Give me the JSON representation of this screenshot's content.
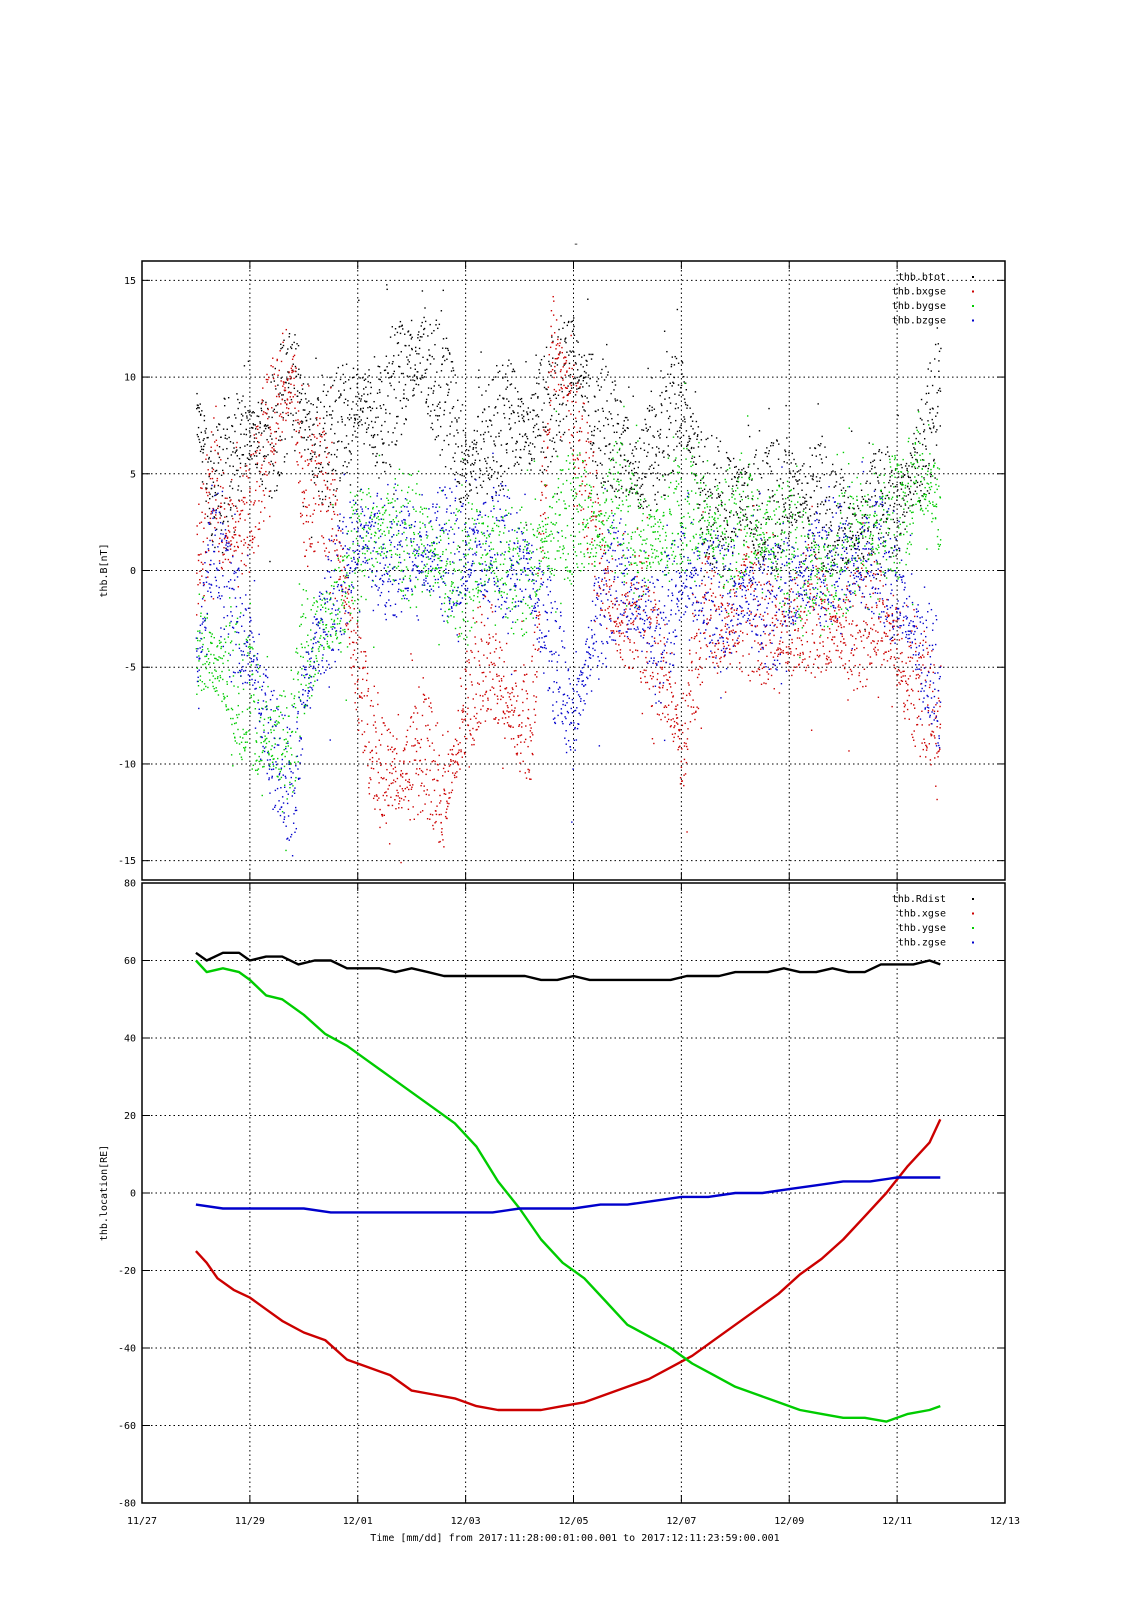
{
  "page": {
    "title_mark": "-"
  },
  "colors": {
    "black": "#000000",
    "red": "#cc0000",
    "green": "#00cc00",
    "blue": "#0000cc",
    "grid": "#000000"
  },
  "x_axis": {
    "label": "Time [mm/dd]  from 2017:11:28:00:01:00.001  to  2017:12:11:23:59:00.001",
    "ticks": [
      {
        "day": 0,
        "label": "11/27"
      },
      {
        "day": 2,
        "label": "11/29"
      },
      {
        "day": 4,
        "label": "12/01"
      },
      {
        "day": 6,
        "label": "12/03"
      },
      {
        "day": 8,
        "label": "12/05"
      },
      {
        "day": 10,
        "label": "12/07"
      },
      {
        "day": 12,
        "label": "12/09"
      },
      {
        "day": 14,
        "label": "12/11"
      },
      {
        "day": 16,
        "label": "12/13"
      }
    ],
    "range": [
      "11/27",
      "12/13"
    ]
  },
  "chart_data": [
    {
      "type": "scatter",
      "ylabel": "thb.B[nT]",
      "ylim": [
        -16,
        16
      ],
      "y_ticks": [
        -15,
        -10,
        -5,
        0,
        5,
        10,
        15
      ],
      "grid": true,
      "legend_position": "top-right",
      "x_unit": "day since 11/27",
      "series": [
        {
          "name": "thb.btot",
          "color": "#000000",
          "x": [
            1.0,
            1.3,
            1.6,
            2.0,
            2.4,
            2.8,
            3.0,
            3.3,
            3.6,
            4.0,
            4.4,
            4.8,
            5.2,
            5.6,
            6.0,
            6.4,
            6.8,
            7.2,
            7.6,
            8.0,
            8.4,
            8.8,
            9.2,
            9.6,
            10.0,
            10.4,
            10.8,
            11.2,
            11.6,
            12.0,
            12.4,
            12.8,
            13.2,
            13.6,
            14.0,
            14.4,
            14.8
          ],
          "y": [
            8,
            4,
            6,
            7,
            7,
            10,
            8,
            6,
            7,
            9,
            8,
            10,
            11,
            9,
            5,
            7,
            8,
            7,
            9,
            11,
            8,
            7,
            5,
            7,
            9,
            4,
            3,
            4,
            3,
            4,
            4,
            3,
            2,
            3,
            3,
            6,
            9
          ]
        },
        {
          "name": "thb.bxgse",
          "color": "#cc0000",
          "x": [
            1.0,
            1.3,
            1.6,
            2.0,
            2.4,
            2.8,
            3.0,
            3.3,
            3.6,
            4.0,
            4.4,
            4.8,
            5.2,
            5.6,
            6.0,
            6.4,
            6.8,
            7.2,
            7.6,
            8.0,
            8.4,
            8.8,
            9.2,
            9.6,
            10.0,
            10.4,
            10.8,
            11.2,
            11.6,
            12.0,
            12.4,
            12.8,
            13.2,
            13.6,
            14.0,
            14.4,
            14.8
          ],
          "y": [
            0,
            4,
            2,
            3,
            8,
            10,
            3,
            5,
            2,
            -6,
            -10,
            -11,
            -9,
            -12,
            -7,
            -4,
            -7,
            -8,
            12,
            8,
            2,
            -3,
            -2,
            -5,
            -9,
            -2,
            -3,
            -2,
            -3,
            -3,
            -2,
            -3,
            -3,
            -2,
            -4,
            -6,
            -8
          ]
        },
        {
          "name": "thb.bygse",
          "color": "#00cc00",
          "x": [
            1.0,
            1.3,
            1.6,
            2.0,
            2.4,
            2.8,
            3.0,
            3.3,
            3.6,
            4.0,
            4.4,
            4.8,
            5.2,
            5.6,
            6.0,
            6.4,
            6.8,
            7.2,
            7.6,
            8.0,
            8.4,
            8.8,
            9.2,
            9.6,
            10.0,
            10.4,
            10.8,
            11.2,
            11.6,
            12.0,
            12.4,
            12.8,
            13.2,
            13.6,
            14.0,
            14.4,
            14.8
          ],
          "y": [
            -3,
            -5,
            -5,
            -7,
            -9,
            -8,
            -4,
            -3,
            -2,
            1,
            2,
            2,
            1,
            0,
            0,
            1,
            0,
            0,
            2,
            3,
            2,
            4,
            1,
            2,
            3,
            3,
            2,
            3,
            2,
            1,
            0,
            0,
            2,
            2,
            3,
            5,
            3
          ]
        },
        {
          "name": "thb.bzgse",
          "color": "#0000cc",
          "x": [
            1.0,
            1.3,
            1.6,
            2.0,
            2.4,
            2.8,
            3.0,
            3.3,
            3.6,
            4.0,
            4.4,
            4.8,
            5.2,
            5.6,
            6.0,
            6.4,
            6.8,
            7.2,
            7.6,
            8.0,
            8.4,
            8.8,
            9.2,
            9.6,
            10.0,
            10.4,
            10.8,
            11.2,
            11.6,
            12.0,
            12.4,
            12.8,
            13.2,
            13.6,
            14.0,
            14.4,
            14.8
          ],
          "y": [
            -5,
            2,
            -2,
            -4,
            -9,
            -12,
            -6,
            -3,
            -1,
            2,
            1,
            1,
            1,
            1,
            1,
            1,
            1,
            0,
            -4,
            -8,
            -3,
            0,
            -2,
            -4,
            0,
            -1,
            -2,
            -1,
            -2,
            -1,
            0,
            1,
            0,
            1,
            -1,
            -4,
            -6
          ]
        }
      ]
    },
    {
      "type": "line",
      "ylabel": "thb.location[RE]",
      "ylim": [
        -80,
        80
      ],
      "y_ticks": [
        -80,
        -60,
        -40,
        -20,
        0,
        20,
        40,
        60,
        80
      ],
      "grid": true,
      "legend_position": "top-right",
      "x_unit": "day since 11/27",
      "series": [
        {
          "name": "thb.Rdist",
          "color": "#000000",
          "x": [
            1.0,
            1.2,
            1.5,
            1.8,
            2.0,
            2.3,
            2.6,
            2.9,
            3.2,
            3.5,
            3.8,
            4.1,
            4.4,
            4.7,
            5.0,
            5.3,
            5.6,
            5.9,
            6.2,
            6.5,
            6.8,
            7.1,
            7.4,
            7.7,
            8.0,
            8.3,
            8.6,
            8.9,
            9.2,
            9.5,
            9.8,
            10.1,
            10.4,
            10.7,
            11.0,
            11.3,
            11.6,
            11.9,
            12.2,
            12.5,
            12.8,
            13.1,
            13.4,
            13.7,
            14.0,
            14.3,
            14.6,
            14.8
          ],
          "y": [
            62,
            60,
            62,
            62,
            60,
            61,
            61,
            59,
            60,
            60,
            58,
            58,
            58,
            57,
            58,
            57,
            56,
            56,
            56,
            56,
            56,
            56,
            55,
            55,
            56,
            55,
            55,
            55,
            55,
            55,
            55,
            56,
            56,
            56,
            57,
            57,
            57,
            58,
            57,
            57,
            58,
            57,
            57,
            59,
            59,
            59,
            60,
            59
          ]
        },
        {
          "name": "thb.xgse",
          "color": "#cc0000",
          "x": [
            1.0,
            1.2,
            1.4,
            1.7,
            2.0,
            2.3,
            2.6,
            3.0,
            3.4,
            3.8,
            4.2,
            4.6,
            5.0,
            5.4,
            5.8,
            6.2,
            6.6,
            7.0,
            7.4,
            7.8,
            8.2,
            8.6,
            9.0,
            9.4,
            9.8,
            10.2,
            10.6,
            11.0,
            11.4,
            11.8,
            12.2,
            12.6,
            13.0,
            13.4,
            13.8,
            14.2,
            14.6,
            14.8
          ],
          "y": [
            -15,
            -18,
            -22,
            -25,
            -27,
            -30,
            -33,
            -36,
            -38,
            -43,
            -45,
            -47,
            -51,
            -52,
            -53,
            -55,
            -56,
            -56,
            -56,
            -55,
            -54,
            -52,
            -50,
            -48,
            -45,
            -42,
            -38,
            -34,
            -30,
            -26,
            -21,
            -17,
            -12,
            -6,
            0,
            7,
            13,
            19
          ]
        },
        {
          "name": "thb.ygse",
          "color": "#00cc00",
          "x": [
            1.0,
            1.2,
            1.5,
            1.8,
            2.0,
            2.3,
            2.6,
            3.0,
            3.4,
            3.8,
            4.2,
            4.6,
            5.0,
            5.4,
            5.8,
            6.2,
            6.6,
            7.0,
            7.4,
            7.8,
            8.2,
            8.6,
            9.0,
            9.4,
            9.8,
            10.2,
            10.6,
            11.0,
            11.4,
            11.8,
            12.2,
            12.6,
            13.0,
            13.4,
            13.8,
            14.2,
            14.6,
            14.8
          ],
          "y": [
            60,
            57,
            58,
            57,
            55,
            51,
            50,
            46,
            41,
            38,
            34,
            30,
            26,
            22,
            18,
            12,
            3,
            -4,
            -12,
            -18,
            -22,
            -28,
            -34,
            -37,
            -40,
            -44,
            -47,
            -50,
            -52,
            -54,
            -56,
            -57,
            -58,
            -58,
            -59,
            -57,
            -56,
            -55
          ]
        },
        {
          "name": "thb.zgse",
          "color": "#0000cc",
          "x": [
            1.0,
            1.5,
            2.0,
            2.5,
            3.0,
            3.5,
            4.0,
            4.5,
            5.0,
            5.5,
            6.0,
            6.5,
            7.0,
            7.5,
            8.0,
            8.5,
            9.0,
            9.5,
            10.0,
            10.5,
            11.0,
            11.5,
            12.0,
            12.5,
            13.0,
            13.5,
            14.0,
            14.5,
            14.8
          ],
          "y": [
            -3,
            -4,
            -4,
            -4,
            -4,
            -5,
            -5,
            -5,
            -5,
            -5,
            -5,
            -5,
            -4,
            -4,
            -4,
            -3,
            -3,
            -2,
            -1,
            -1,
            0,
            0,
            1,
            2,
            3,
            3,
            4,
            4,
            4
          ]
        }
      ]
    }
  ]
}
